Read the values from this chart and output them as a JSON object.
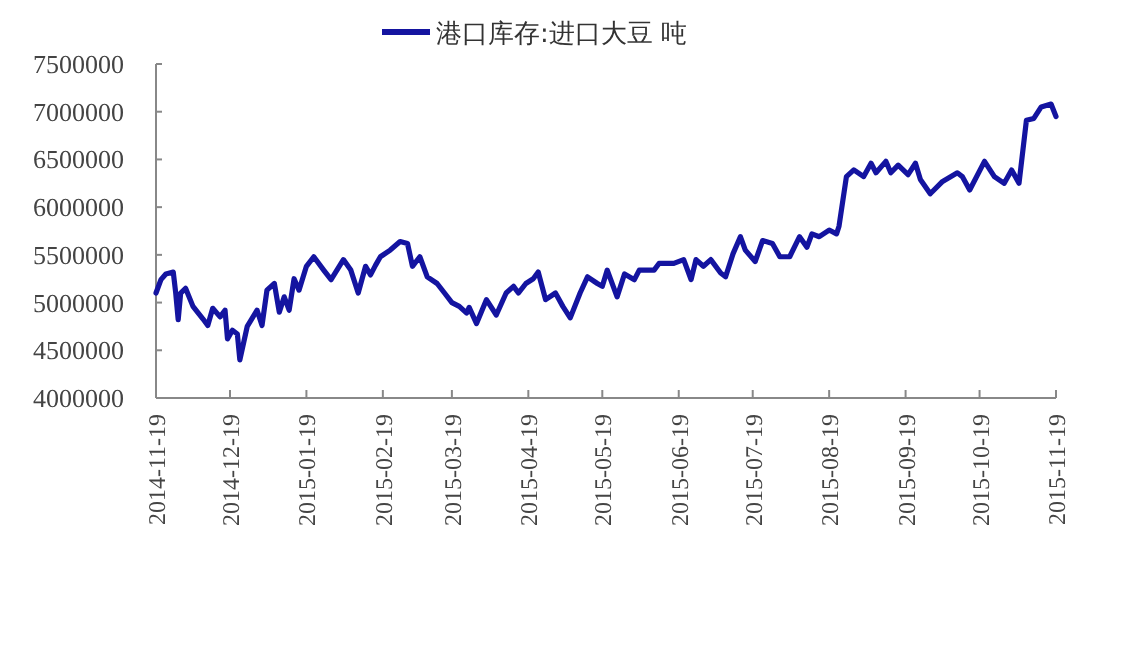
{
  "chart_data": {
    "type": "line",
    "x": [
      "2014-11-19",
      "2014-11-21",
      "2014-11-23",
      "2014-11-26",
      "2014-11-27",
      "2014-11-28",
      "2014-11-29",
      "2014-12-01",
      "2014-12-04",
      "2014-12-08",
      "2014-12-10",
      "2014-12-12",
      "2014-12-15",
      "2014-12-17",
      "2014-12-18",
      "2014-12-20",
      "2014-12-22",
      "2014-12-23",
      "2014-12-26",
      "2014-12-30",
      "2015-01-01",
      "2015-01-03",
      "2015-01-06",
      "2015-01-08",
      "2015-01-10",
      "2015-01-12",
      "2015-01-14",
      "2015-01-16",
      "2015-01-19",
      "2015-01-22",
      "2015-01-26",
      "2015-01-29",
      "2015-02-03",
      "2015-02-06",
      "2015-02-09",
      "2015-02-12",
      "2015-02-14",
      "2015-02-16",
      "2015-02-18",
      "2015-02-22",
      "2015-02-26",
      "2015-03-01",
      "2015-03-03",
      "2015-03-06",
      "2015-03-09",
      "2015-03-13",
      "2015-03-16",
      "2015-03-19",
      "2015-03-22",
      "2015-03-25",
      "2015-03-26",
      "2015-03-29",
      "2015-04-02",
      "2015-04-06",
      "2015-04-10",
      "2015-04-13",
      "2015-04-15",
      "2015-04-18",
      "2015-04-21",
      "2015-04-23",
      "2015-04-26",
      "2015-04-30",
      "2015-05-03",
      "2015-05-06",
      "2015-05-10",
      "2015-05-13",
      "2015-05-17",
      "2015-05-19",
      "2015-05-21",
      "2015-05-25",
      "2015-05-28",
      "2015-06-01",
      "2015-06-03",
      "2015-06-09",
      "2015-06-11",
      "2015-06-17",
      "2015-06-21",
      "2015-06-24",
      "2015-06-26",
      "2015-06-29",
      "2015-07-02",
      "2015-07-06",
      "2015-07-08",
      "2015-07-11",
      "2015-07-14",
      "2015-07-16",
      "2015-07-20",
      "2015-07-23",
      "2015-07-27",
      "2015-07-30",
      "2015-08-03",
      "2015-08-07",
      "2015-08-10",
      "2015-08-12",
      "2015-08-15",
      "2015-08-19",
      "2015-08-22",
      "2015-08-23",
      "2015-08-26",
      "2015-08-29",
      "2015-09-02",
      "2015-09-05",
      "2015-09-07",
      "2015-09-11",
      "2015-09-13",
      "2015-09-16",
      "2015-09-20",
      "2015-09-23",
      "2015-09-25",
      "2015-09-29",
      "2015-10-04",
      "2015-10-10",
      "2015-10-12",
      "2015-10-15",
      "2015-10-21",
      "2015-10-25",
      "2015-10-29",
      "2015-11-01",
      "2015-11-04",
      "2015-11-07",
      "2015-11-10",
      "2015-11-13",
      "2015-11-17",
      "2015-11-19"
    ],
    "series": [
      {
        "name": "港口库存:进口大豆 吨",
        "color": "#1414a0",
        "values": [
          5100000,
          5240000,
          5300000,
          5320000,
          5100000,
          4820000,
          5100000,
          5150000,
          4960000,
          4830000,
          4760000,
          4940000,
          4850000,
          4920000,
          4620000,
          4710000,
          4670000,
          4400000,
          4750000,
          4920000,
          4760000,
          5130000,
          5200000,
          4900000,
          5060000,
          4920000,
          5250000,
          5130000,
          5380000,
          5480000,
          5340000,
          5240000,
          5450000,
          5340000,
          5100000,
          5380000,
          5290000,
          5390000,
          5480000,
          5550000,
          5640000,
          5620000,
          5380000,
          5480000,
          5270000,
          5200000,
          5100000,
          5000000,
          4960000,
          4890000,
          4950000,
          4780000,
          5030000,
          4870000,
          5100000,
          5170000,
          5100000,
          5200000,
          5250000,
          5320000,
          5030000,
          5100000,
          4960000,
          4840000,
          5100000,
          5270000,
          5200000,
          5170000,
          5340000,
          5060000,
          5300000,
          5240000,
          5340000,
          5340000,
          5410000,
          5410000,
          5450000,
          5240000,
          5450000,
          5380000,
          5450000,
          5310000,
          5270000,
          5510000,
          5690000,
          5550000,
          5430000,
          5650000,
          5620000,
          5480000,
          5480000,
          5690000,
          5580000,
          5720000,
          5690000,
          5760000,
          5720000,
          5800000,
          6320000,
          6390000,
          6320000,
          6460000,
          6360000,
          6480000,
          6360000,
          6440000,
          6340000,
          6460000,
          6290000,
          6140000,
          6270000,
          6360000,
          6320000,
          6180000,
          6480000,
          6320000,
          6250000,
          6390000,
          6250000,
          6910000,
          6930000,
          7050000,
          7080000,
          6950000
        ]
      }
    ],
    "xlim": [
      "2014-11-19",
      "2015-11-19"
    ],
    "xticks": [
      "2014-11-19",
      "2014-12-19",
      "2015-01-19",
      "2015-02-19",
      "2015-03-19",
      "2015-04-19",
      "2015-05-19",
      "2015-06-19",
      "2015-07-19",
      "2015-08-19",
      "2015-09-19",
      "2015-10-19",
      "2015-11-19"
    ],
    "ylim": [
      4000000,
      7500000
    ],
    "yticks": [
      4000000,
      4500000,
      5000000,
      5500000,
      6000000,
      6500000,
      7000000,
      7500000
    ],
    "grid": false,
    "legend": "top",
    "marker": "none",
    "line_style": "solid"
  }
}
